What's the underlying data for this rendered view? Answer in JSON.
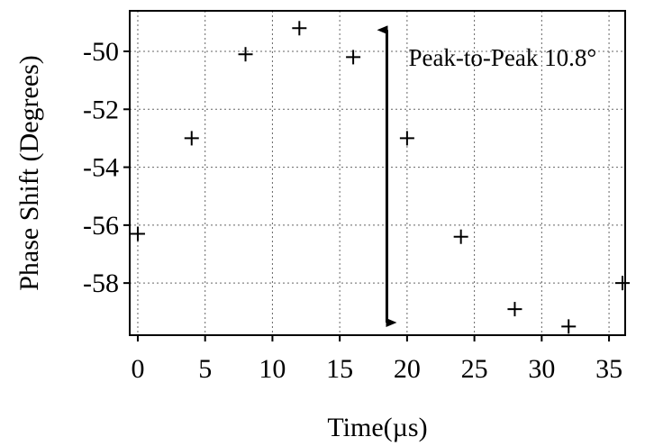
{
  "chart_data": {
    "type": "scatter",
    "xlabel": "Time(µs)",
    "ylabel": "Phase Shift (Degrees)",
    "x_ticks": [
      0,
      5,
      10,
      15,
      20,
      25,
      30,
      35
    ],
    "y_ticks": [
      -50,
      -52,
      -54,
      -56,
      -58
    ],
    "xlim": [
      -0.6,
      36.2
    ],
    "ylim": [
      -59.8,
      -48.6
    ],
    "grid": true,
    "marker": "+",
    "series": [
      {
        "x": [
          0,
          4,
          8,
          12,
          16,
          20,
          24,
          28,
          32,
          36
        ],
        "y": [
          -56.3,
          -53.0,
          -50.1,
          -49.2,
          -50.2,
          -53.0,
          -56.4,
          -58.9,
          -59.5,
          -58.0
        ]
      }
    ],
    "annotation": {
      "text": "Peak-to-Peak 10.8°",
      "arrow_x": 18.5,
      "arrow_y_range": [
        -49.2,
        -59.8
      ]
    },
    "colors": {
      "ink": "#000000",
      "grid": "#666666",
      "background": "#ffffff"
    }
  }
}
